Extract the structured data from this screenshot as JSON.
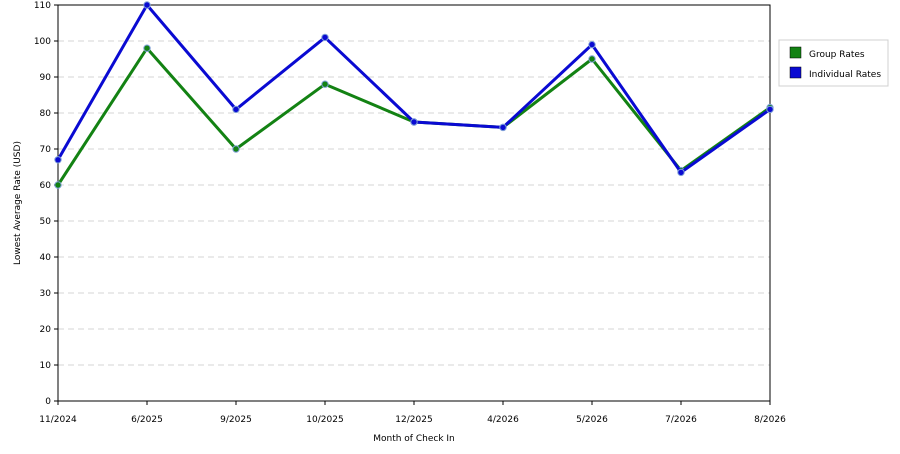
{
  "chart_data": {
    "type": "line",
    "title": "",
    "xlabel": "Month of Check In",
    "ylabel": "Lowest Average Rate (USD)",
    "categories": [
      "11/2024",
      "6/2025",
      "9/2025",
      "10/2025",
      "12/2025",
      "4/2026",
      "5/2026",
      "7/2026",
      "8/2026"
    ],
    "ylim": [
      0,
      110
    ],
    "yticks": [
      0,
      10,
      20,
      30,
      40,
      50,
      60,
      70,
      80,
      90,
      100,
      110
    ],
    "grid": true,
    "legend_position": "right",
    "series": [
      {
        "name": "Group Rates",
        "color": "#138213",
        "values": [
          60,
          98,
          70,
          88,
          77.5,
          76,
          95,
          64,
          81.5
        ]
      },
      {
        "name": "Individual Rates",
        "color": "#0a0ad2",
        "values": [
          67,
          110,
          81,
          101,
          77.5,
          76,
          99,
          63.5,
          81
        ]
      }
    ]
  }
}
